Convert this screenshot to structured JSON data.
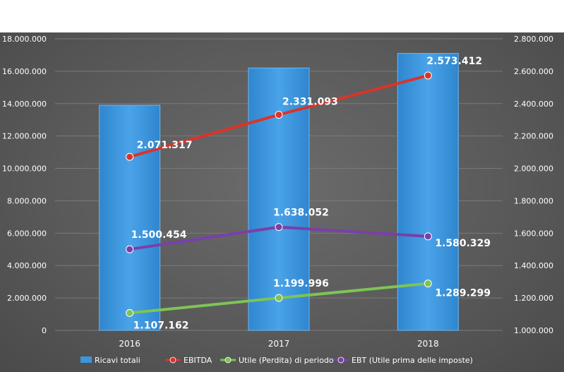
{
  "chart_data": {
    "type": "bar+line",
    "categories": [
      "2016",
      "2017",
      "2018"
    ],
    "y_left": {
      "ylim": [
        0,
        18000000
      ],
      "ticks": [
        0,
        2000000,
        4000000,
        6000000,
        8000000,
        10000000,
        12000000,
        14000000,
        16000000,
        18000000
      ],
      "tick_labels": [
        "0",
        "2.000.000",
        "4.000.000",
        "6.000.000",
        "8.000.000",
        "10.000.000",
        "12.000.000",
        "14.000.000",
        "16.000.000",
        "18.000.000"
      ]
    },
    "y_right": {
      "ylim": [
        1000000,
        2800000
      ],
      "ticks": [
        1000000,
        1200000,
        1400000,
        1600000,
        1800000,
        2000000,
        2200000,
        2400000,
        2600000,
        2800000
      ],
      "tick_labels": [
        "1.000.000",
        "1.200.000",
        "1.400.000",
        "1.600.000",
        "1.800.000",
        "2.000.000",
        "2.200.000",
        "2.400.000",
        "2.600.000",
        "2.800.000"
      ]
    },
    "series": [
      {
        "name": "Ricavi totali",
        "kind": "bar",
        "axis": "left",
        "color": "#3d95db",
        "values": [
          13900000,
          16200000,
          17100000
        ]
      },
      {
        "name": "EBITDA",
        "kind": "line",
        "axis": "right",
        "color": "#d9342b",
        "values": [
          2071317,
          2331093,
          2573412
        ],
        "labels": [
          "2.071.317",
          "2.331.093",
          "2.573.412"
        ]
      },
      {
        "name": "Utile (Perdita) di periodo",
        "kind": "line",
        "axis": "right",
        "color": "#7dc456",
        "values": [
          1107162,
          1199996,
          1289299
        ],
        "labels": [
          "1.107.162",
          "1.199.996",
          "1.289.299"
        ]
      },
      {
        "name": "EBT (Utile prima delle imposte)",
        "kind": "line",
        "axis": "right",
        "color": "#7a3fa8",
        "values": [
          1500454,
          1638052,
          1580329
        ],
        "labels": [
          "1.500.454",
          "1.638.052",
          "1.580.329"
        ]
      }
    ],
    "grid": true,
    "legend_position": "bottom"
  }
}
